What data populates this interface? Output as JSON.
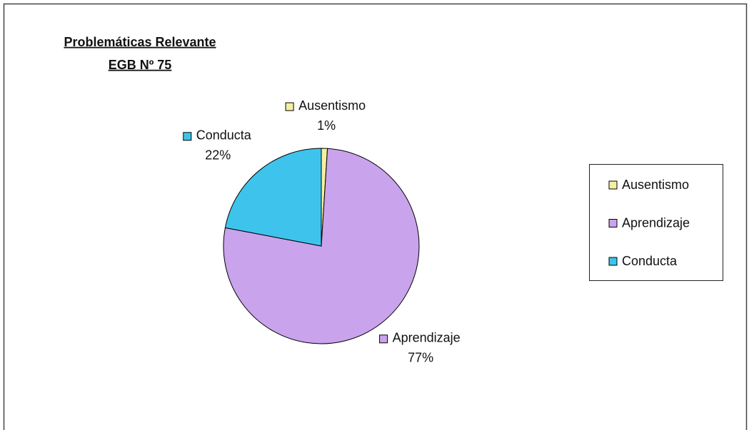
{
  "chart_data": {
    "type": "pie",
    "title": [
      "Problemáticas Relevante",
      "EGB Nº 75"
    ],
    "categories": [
      "Ausentismo",
      "Aprendizaje",
      "Conducta"
    ],
    "values": [
      1,
      77,
      22
    ],
    "value_labels": [
      "1%",
      "77%",
      "22%"
    ],
    "colors": [
      "#f4f0a0",
      "#c9a3ec",
      "#3ec4ec"
    ],
    "legend": "right"
  }
}
